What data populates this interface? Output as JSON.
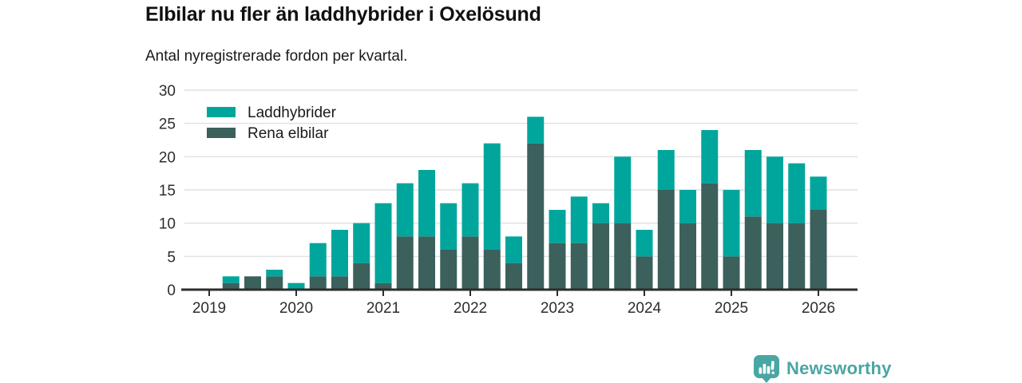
{
  "header": {
    "title": "Elbilar nu fler än laddhybrider i Oxelösund",
    "subtitle": "Antal nyregistrerade fordon per kvartal."
  },
  "chart_data": {
    "type": "bar",
    "stacked": true,
    "title": "Elbilar nu fler än laddhybrider i Oxelösund",
    "subtitle": "Antal nyregistrerade fordon per kvartal.",
    "categories": [
      "2019 Q1",
      "2019 Q2",
      "2019 Q3",
      "2019 Q4",
      "2020 Q1",
      "2020 Q2",
      "2020 Q3",
      "2020 Q4",
      "2021 Q1",
      "2021 Q2",
      "2021 Q3",
      "2021 Q4",
      "2022 Q1",
      "2022 Q2",
      "2022 Q3",
      "2022 Q4",
      "2023 Q1",
      "2023 Q2",
      "2023 Q3",
      "2023 Q4",
      "2024 Q1",
      "2024 Q2",
      "2024 Q3",
      "2024 Q4",
      "2025 Q1",
      "2025 Q2",
      "2025 Q3",
      "2025 Q4",
      "2026 Q1"
    ],
    "x_tick_labels": [
      "2019",
      "2020",
      "2021",
      "2022",
      "2023",
      "2024",
      "2025",
      "2026"
    ],
    "series": [
      {
        "name": "Rena elbilar",
        "color": "#3c605c",
        "stack_position": "bottom",
        "values": [
          0,
          1,
          2,
          2,
          0,
          2,
          2,
          4,
          1,
          8,
          8,
          6,
          8,
          6,
          4,
          22,
          7,
          7,
          10,
          10,
          5,
          15,
          10,
          16,
          5,
          11,
          10,
          10,
          12
        ]
      },
      {
        "name": "Laddhybrider",
        "color": "#00a69c",
        "stack_position": "top",
        "values": [
          0,
          1,
          0,
          1,
          1,
          5,
          7,
          6,
          12,
          8,
          10,
          7,
          8,
          16,
          4,
          4,
          5,
          7,
          3,
          10,
          4,
          6,
          5,
          8,
          10,
          10,
          10,
          9,
          5
        ]
      }
    ],
    "totals": [
      0,
      2,
      2,
      3,
      1,
      7,
      9,
      10,
      13,
      16,
      18,
      13,
      16,
      22,
      8,
      26,
      12,
      14,
      13,
      20,
      9,
      21,
      15,
      24,
      15,
      21,
      20,
      19,
      17
    ],
    "legend": [
      {
        "label": "Laddhybrider",
        "color": "#00a69c"
      },
      {
        "label": "Rena elbilar",
        "color": "#3c605c"
      }
    ],
    "legend_position": "top-left",
    "xlabel": "",
    "ylabel": "",
    "ylim": [
      0,
      30
    ],
    "yticks": [
      0,
      5,
      10,
      15,
      20,
      25,
      30
    ],
    "grid": "horizontal"
  },
  "style": {
    "grid_color": "#e1e1e1",
    "axis_color": "#2d2d2d",
    "background": "#ffffff"
  },
  "footer": {
    "brand": "Newsworthy",
    "brand_color": "#4aa6a3"
  }
}
